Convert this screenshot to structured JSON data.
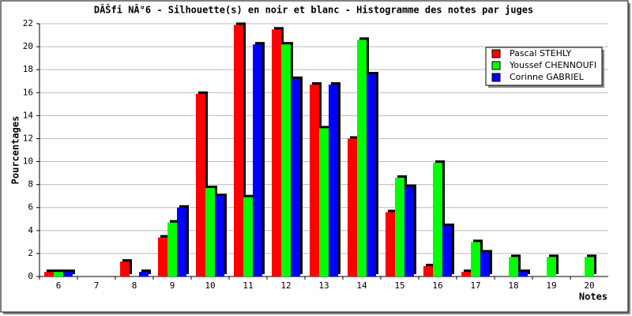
{
  "chart_data": {
    "type": "bar",
    "title": "DĂŠfi NÂ°6 - Silhouette(s) en noir et blanc - Histogramme des notes par juges",
    "x_label": "Notes",
    "y_label": "Pourcentages",
    "categories": [
      "6",
      "7",
      "8",
      "9",
      "10",
      "11",
      "12",
      "13",
      "14",
      "15",
      "16",
      "17",
      "18",
      "19",
      "20"
    ],
    "series": [
      {
        "name": "Pascal STEHLY",
        "color": "#ff0000",
        "values": [
          0.4,
          0,
          1.3,
          3.4,
          15.9,
          21.9,
          21.5,
          16.7,
          12.0,
          5.6,
          0.9,
          0.4,
          0,
          0,
          0
        ]
      },
      {
        "name": "Youssef CHENNOUFI",
        "color": "#00ff00",
        "values": [
          0.4,
          0,
          0,
          4.7,
          7.7,
          6.9,
          20.2,
          12.9,
          20.6,
          8.6,
          9.9,
          3.0,
          1.7,
          1.7,
          1.7
        ]
      },
      {
        "name": "Corinne GABRIEL",
        "color": "#0000ff",
        "values": [
          0.4,
          0,
          0.4,
          6.0,
          7.0,
          20.2,
          17.2,
          16.7,
          17.6,
          7.8,
          4.4,
          2.1,
          0.4,
          0,
          0
        ]
      }
    ],
    "ylim": [
      0,
      22
    ],
    "yticks": [
      0,
      2,
      4,
      6,
      8,
      10,
      12,
      14,
      16,
      18,
      20,
      22
    ],
    "grid": true
  }
}
